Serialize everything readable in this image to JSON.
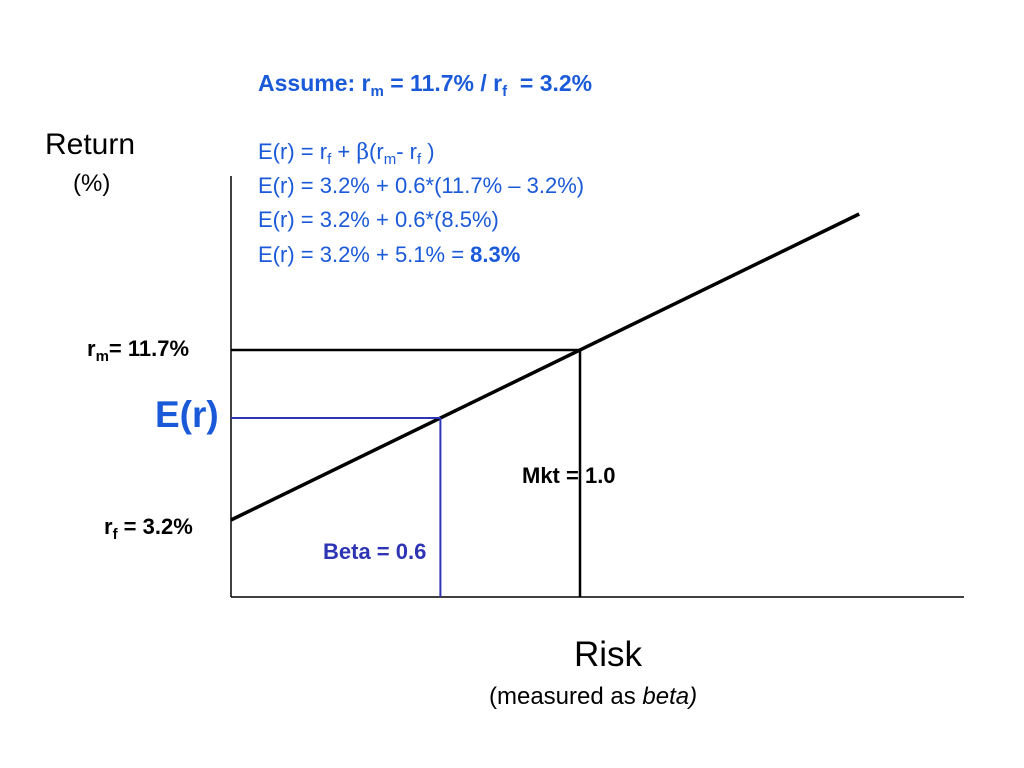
{
  "colors": {
    "formula_text": "#1a5ad8",
    "beta_guide": "#2e35b5",
    "axes": "#000000"
  },
  "assumptions": {
    "prefix": "Assume: r",
    "rm_sub": "m",
    "rm_part": " = 11.7% / r",
    "rf_sub": "f",
    "rf_part": "  = 3.2%"
  },
  "formula": {
    "line1": {
      "a": "E(r) = r",
      "a_sub": "f",
      "b": " + ",
      "beta_symbol": "β",
      "c": "(r",
      "c_sub": "m",
      "d": "- r",
      "d_sub": "f",
      "e": " )"
    },
    "line2": "E(r) = 3.2% + 0.6*(11.7% – 3.2%)",
    "line3": "E(r) = 3.2% + 0.6*(8.5%)",
    "line4_prefix": "E(r) = 3.2% + 5.1% = ",
    "line4_result": "8.3%"
  },
  "axes": {
    "y_title": "Return",
    "y_unit": "(%)",
    "x_title": "Risk",
    "x_subtitle_plain": "(measured as ",
    "x_subtitle_italic": "beta)"
  },
  "labels": {
    "rm_symbol": "r",
    "rm_sub": "m",
    "rm_value": "= 11.7%",
    "er": "E(r)",
    "rf_symbol": "r",
    "rf_sub": "f",
    "rf_value": " = 3.2%",
    "market_beta": "Mkt = 1.0",
    "asset_beta": "Beta = 0.6"
  },
  "chart_data": {
    "type": "line",
    "series": [
      {
        "name": "",
        "x": [
          0,
          1.0
        ],
        "y": [
          3.2,
          11.7
        ]
      }
    ],
    "points": {
      "risk_free": {
        "beta": 0,
        "return": 3.2
      },
      "market": {
        "beta": 1.0,
        "return": 11.7
      },
      "asset": {
        "beta": 0.6,
        "return": 8.3
      }
    },
    "xlabel": "Risk",
    "ylabel": "Return"
  }
}
